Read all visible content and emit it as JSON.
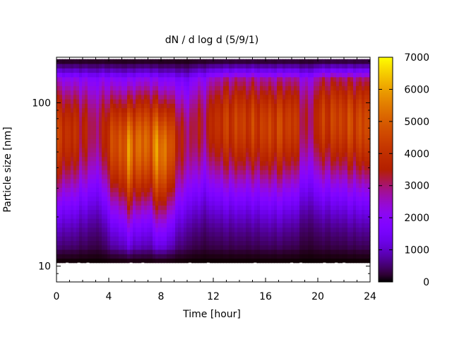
{
  "chart_data": {
    "type": "heatmap",
    "title": "dN / d log d (5/9/1)",
    "xlabel": "Time [hour]",
    "ylabel": "Particle size [nm]",
    "x_range": [
      0,
      24
    ],
    "x_ticks": [
      0,
      4,
      8,
      12,
      16,
      20,
      24
    ],
    "y_scale": "log",
    "y_range_nm": [
      8,
      190
    ],
    "y_data_range_nm": [
      10.5,
      185
    ],
    "y_tick_labels": [
      {
        "value": 10,
        "label": "10"
      },
      {
        "value": 100,
        "label": "100"
      }
    ],
    "colorbar": {
      "range": [
        0,
        7000
      ],
      "ticks": [
        0,
        1000,
        2000,
        3000,
        4000,
        5000,
        6000,
        7000
      ],
      "palette": "gnuplot-pm3d-hot (black-purple-red-orange-yellow)"
    },
    "intensity_profile_hours": [
      0,
      1,
      2,
      3,
      3.5,
      4,
      5,
      5.5,
      6,
      7,
      8,
      8.8,
      9.5,
      10,
      10.5,
      11.5,
      12,
      13,
      14,
      15,
      16,
      17,
      18,
      18.5,
      19,
      19.5,
      20,
      21,
      22,
      23,
      24
    ],
    "peak_concentration": [
      4200,
      4000,
      3600,
      3000,
      3300,
      4300,
      4800,
      5400,
      5200,
      5000,
      5700,
      4600,
      3400,
      3000,
      3300,
      3200,
      3900,
      4200,
      4300,
      4200,
      4300,
      4400,
      4300,
      3900,
      3100,
      3000,
      4000,
      4300,
      4400,
      4500,
      4500
    ],
    "peak_diameter_nm": [
      65,
      65,
      68,
      70,
      70,
      60,
      55,
      52,
      55,
      58,
      50,
      55,
      60,
      60,
      70,
      75,
      75,
      75,
      75,
      75,
      72,
      72,
      75,
      75,
      80,
      80,
      80,
      80,
      78,
      75,
      75
    ],
    "grid": false,
    "legend": "colorbar right"
  }
}
